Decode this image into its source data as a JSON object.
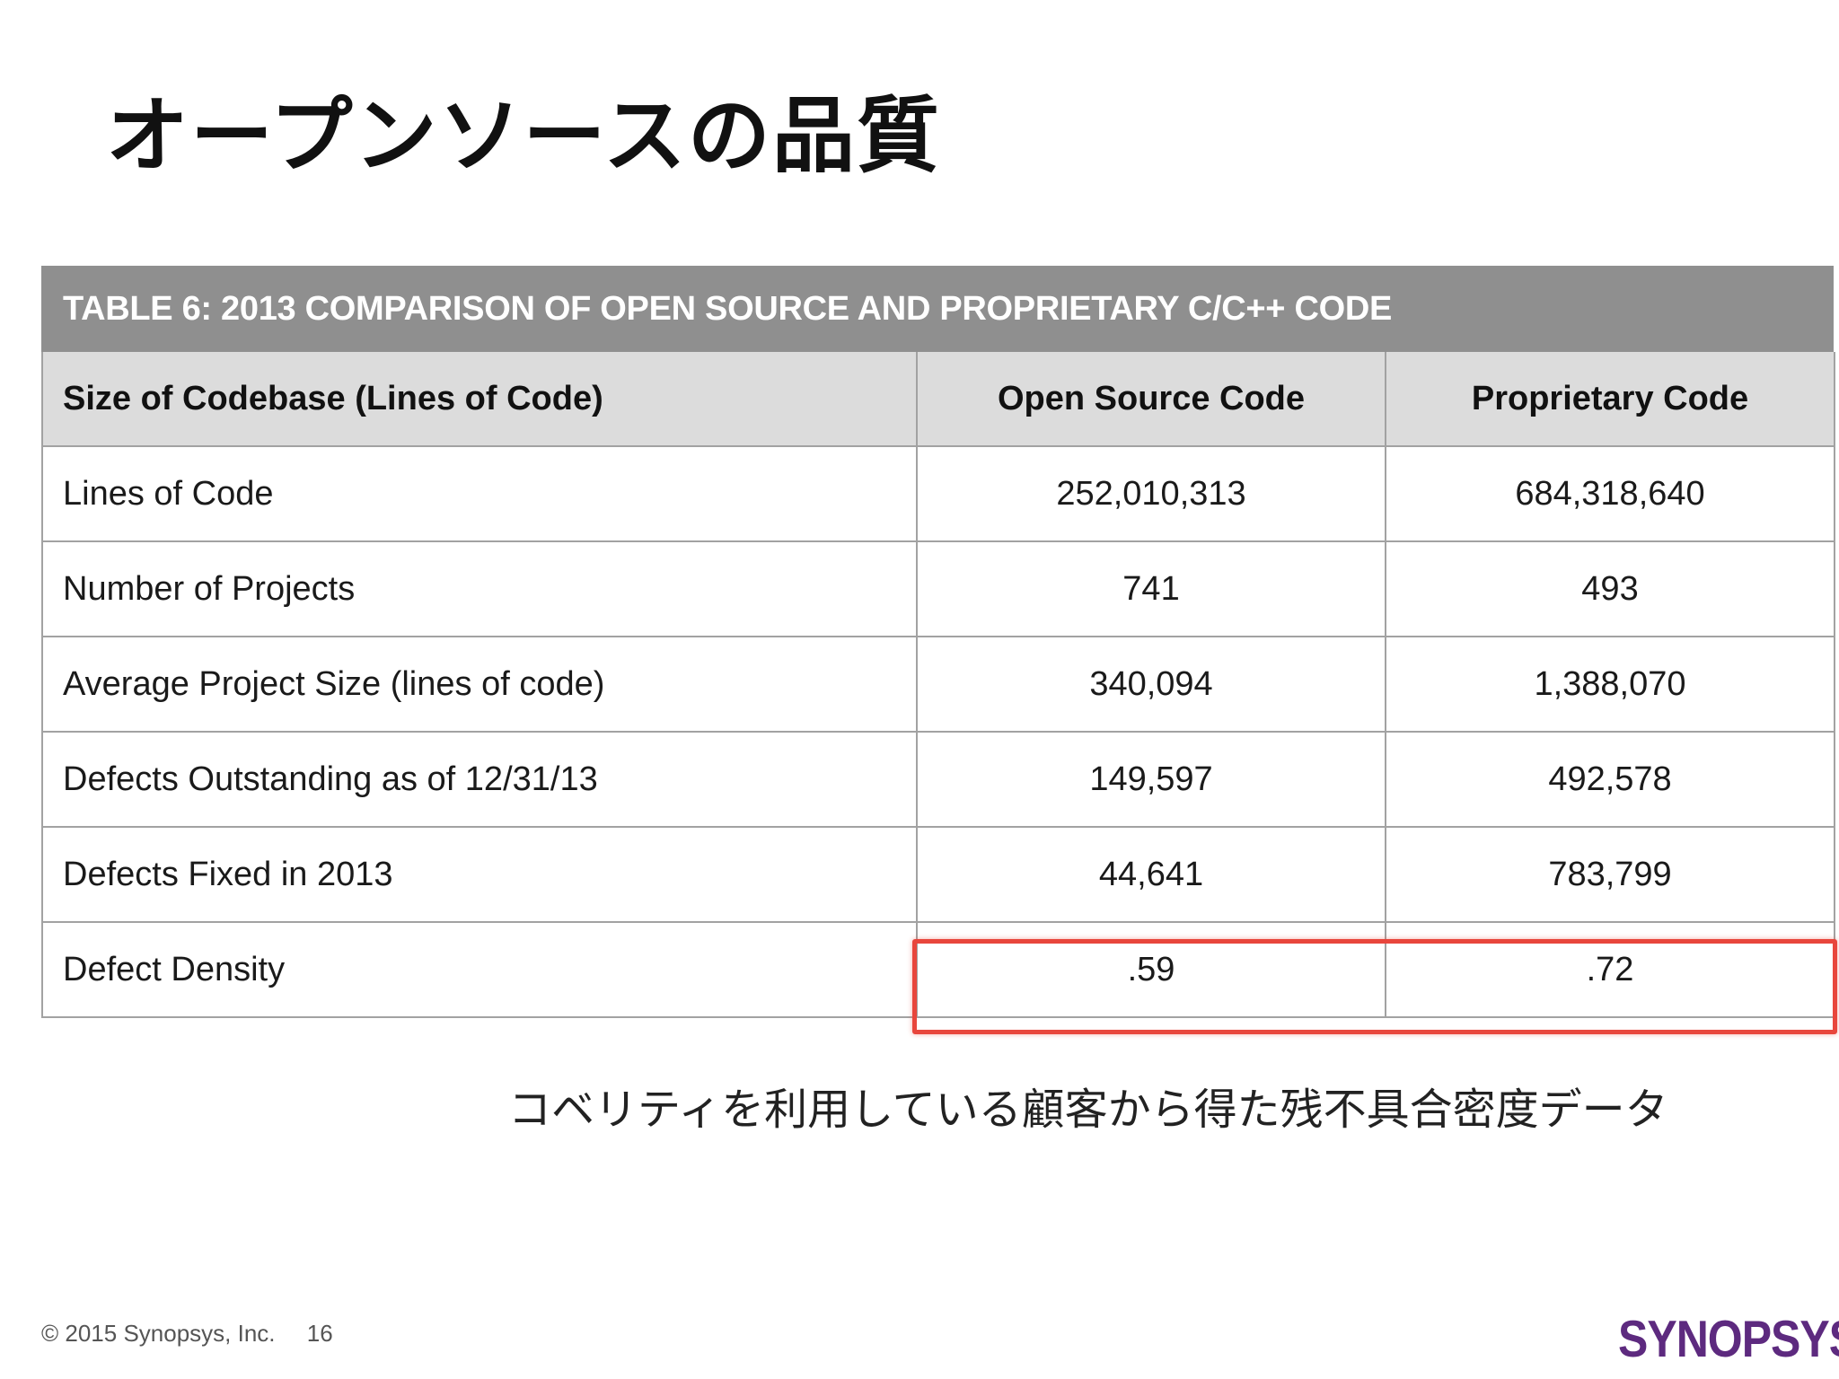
{
  "title": "オープンソースの品質",
  "table": {
    "caption": "TABLE 6: 2013 COMPARISON OF OPEN SOURCE AND PROPRIETARY C/C++ CODE",
    "headers": [
      "Size of Codebase (Lines of Code)",
      "Open Source Code",
      "Proprietary Code"
    ],
    "rows": [
      {
        "label": "Lines of Code",
        "open_source": "252,010,313",
        "proprietary": "684,318,640"
      },
      {
        "label": "Number of Projects",
        "open_source": "741",
        "proprietary": "493"
      },
      {
        "label": "Average Project Size (lines of code)",
        "open_source": "340,094",
        "proprietary": "1,388,070"
      },
      {
        "label": "Defects Outstanding as of 12/31/13",
        "open_source": "149,597",
        "proprietary": "492,578"
      },
      {
        "label": "Defects Fixed in 2013",
        "open_source": "44,641",
        "proprietary": "783,799"
      },
      {
        "label": "Defect Density",
        "open_source": ".59",
        "proprietary": ".72"
      }
    ]
  },
  "highlight_color": "#e8463c",
  "note": "コベリティを利用している顧客から得た残不具合密度データ",
  "footer": {
    "copyright": "© 2015 Synopsys, Inc.",
    "page_number": "16"
  },
  "logo": {
    "text": "SYNOPSYS",
    "mark": "®",
    "color": "#5d2a7f"
  }
}
